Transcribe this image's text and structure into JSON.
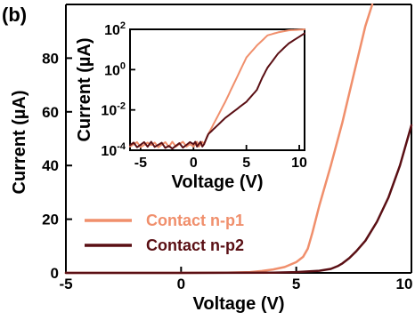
{
  "panel_label": "(b)",
  "colors": {
    "np1": "#f08f6c",
    "np2": "#5a0f14",
    "axis": "#000000",
    "noise": "#8a1d24"
  },
  "chart_data": [
    {
      "type": "line",
      "xlabel": "Voltage (V)",
      "ylabel": "Current (µA)",
      "xlim": [
        -5,
        10
      ],
      "ylim": [
        0,
        100
      ],
      "xticks": [
        -5,
        0,
        5,
        10
      ],
      "xtick_labels": [
        "-5",
        "0",
        "5",
        "10"
      ],
      "yticks": [
        0,
        20,
        40,
        60,
        80
      ],
      "ytick_labels": [
        "0",
        "20",
        "40",
        "60",
        "80"
      ],
      "grid": false,
      "legend_position": "bottom-left",
      "series": [
        {
          "name": "Contact n-p1",
          "color": "#f08f6c",
          "x": [
            -5,
            0,
            2,
            3,
            3.5,
            4,
            4.5,
            5,
            5.3,
            5.5,
            5.7,
            6,
            6.5,
            7,
            7.5,
            8,
            8.3
          ],
          "y": [
            0,
            0,
            0.1,
            0.3,
            0.7,
            1.3,
            2.2,
            4,
            6,
            9,
            15,
            25,
            40,
            56,
            74,
            92,
            100
          ]
        },
        {
          "name": "Contact n-p2",
          "color": "#5a0f14",
          "x": [
            -5,
            0,
            4,
            5,
            6,
            6.5,
            6.8,
            7,
            7.3,
            7.6,
            8,
            8.5,
            9,
            9.5,
            10
          ],
          "y": [
            0,
            0,
            0.1,
            0.3,
            0.8,
            1.5,
            2.5,
            3.5,
            5.5,
            8,
            12,
            19,
            28,
            40,
            55
          ]
        }
      ]
    },
    {
      "type": "line",
      "role": "inset",
      "xlabel": "Voltage (V)",
      "ylabel": "Current (µA)",
      "xlim": [
        -6,
        10.5
      ],
      "ylim_log10": [
        -4,
        2
      ],
      "yscale": "log",
      "xticks": [
        -5,
        0,
        5,
        10
      ],
      "xtick_labels": [
        "-5",
        "0",
        "5",
        "10"
      ],
      "yticks_log10": [
        -4,
        -2,
        0,
        2
      ],
      "ytick_labels": [
        {
          "base": "10",
          "exp": "-4"
        },
        {
          "base": "10",
          "exp": "-2"
        },
        {
          "base": "10",
          "exp": "0"
        },
        {
          "base": "10",
          "exp": "2"
        }
      ],
      "grid": false,
      "series": [
        {
          "name": "Contact n-p1",
          "color": "#f08f6c",
          "x": [
            -6,
            -4,
            -2,
            0,
            1,
            1.3,
            2,
            3,
            4,
            5,
            6,
            7,
            8,
            9,
            10.5
          ],
          "log10_y": [
            -3.7,
            -3.75,
            -3.7,
            -3.7,
            -3.7,
            -3.3,
            -2.6,
            -1.6,
            -0.5,
            0.6,
            1.2,
            1.7,
            1.85,
            1.95,
            2.0
          ]
        },
        {
          "name": "Contact n-p2",
          "color": "#5a0f14",
          "x": [
            -6,
            -4,
            -2,
            0,
            1,
            1.4,
            2,
            3,
            4,
            5,
            6,
            6.5,
            7,
            8,
            9,
            10.5
          ],
          "log10_y": [
            -3.75,
            -3.7,
            -3.8,
            -3.7,
            -3.7,
            -3.2,
            -2.9,
            -2.4,
            -2.0,
            -1.6,
            -1.0,
            -0.4,
            0.1,
            0.8,
            1.3,
            1.8
          ]
        }
      ]
    }
  ]
}
